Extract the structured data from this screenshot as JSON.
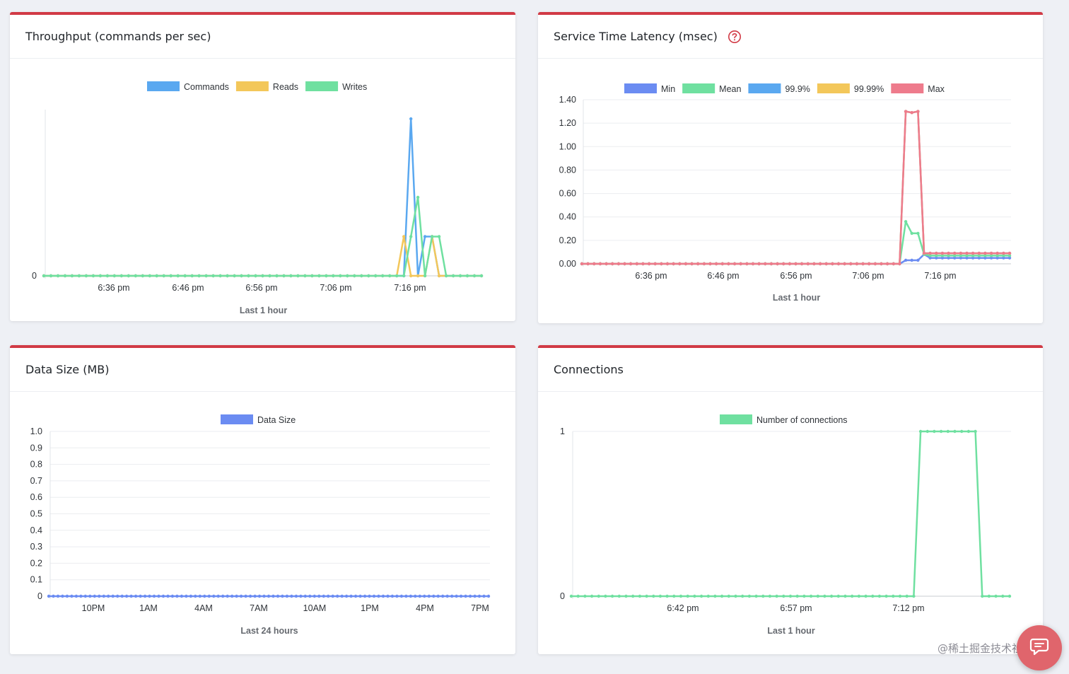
{
  "colors": {
    "commands": "#5aa8f0",
    "reads": "#f3c75a",
    "writes": "#6fe0a0",
    "min": "#6b8cf2",
    "mean": "#6fe0a0",
    "p999": "#5aa8f0",
    "p9999": "#f3c75a",
    "max": "#ee7b8c",
    "datasize": "#6b8cf2",
    "connections": "#6fe0a0",
    "accent": "#d13a45"
  },
  "icons": {
    "help": "help-circle-icon",
    "chat": "chat-bubble-icon"
  },
  "watermark": "@稀土掘金技术社区",
  "charts": {
    "throughput": {
      "title": "Throughput (commands per sec)",
      "chart_data": {
        "type": "line",
        "xlabel": "Last 1 hour",
        "xticks": [
          "6:36 pm",
          "6:46 pm",
          "6:56 pm",
          "7:06 pm",
          "7:16 pm"
        ],
        "yticks": [
          "0"
        ],
        "legend_position": "top",
        "series": [
          {
            "name": "Commands",
            "values": [
              0,
              0,
              0,
              0,
              0,
              0,
              0,
              0,
              0,
              0,
              0,
              0,
              0,
              0,
              0,
              0,
              0,
              0,
              0,
              0,
              0,
              0,
              0,
              0,
              0,
              0,
              0,
              0,
              0,
              0,
              0,
              0,
              0,
              0,
              0,
              0,
              0,
              0,
              0,
              0,
              0,
              0,
              0,
              0,
              0,
              0,
              0,
              0,
              0,
              0,
              0,
              0,
              1,
              0,
              0.25,
              0.25,
              0,
              0,
              0,
              0,
              0,
              0,
              0
            ]
          },
          {
            "name": "Reads",
            "values": [
              0,
              0,
              0,
              0,
              0,
              0,
              0,
              0,
              0,
              0,
              0,
              0,
              0,
              0,
              0,
              0,
              0,
              0,
              0,
              0,
              0,
              0,
              0,
              0,
              0,
              0,
              0,
              0,
              0,
              0,
              0,
              0,
              0,
              0,
              0,
              0,
              0,
              0,
              0,
              0,
              0,
              0,
              0,
              0,
              0,
              0,
              0,
              0,
              0,
              0,
              0,
              0.25,
              0,
              0,
              0,
              0.25,
              0,
              0,
              0,
              0,
              0,
              0,
              0
            ]
          },
          {
            "name": "Writes",
            "values": [
              0,
              0,
              0,
              0,
              0,
              0,
              0,
              0,
              0,
              0,
              0,
              0,
              0,
              0,
              0,
              0,
              0,
              0,
              0,
              0,
              0,
              0,
              0,
              0,
              0,
              0,
              0,
              0,
              0,
              0,
              0,
              0,
              0,
              0,
              0,
              0,
              0,
              0,
              0,
              0,
              0,
              0,
              0,
              0,
              0,
              0,
              0,
              0,
              0,
              0,
              0,
              0,
              0.25,
              0.5,
              0,
              0.25,
              0.25,
              0,
              0,
              0,
              0,
              0,
              0
            ]
          }
        ]
      }
    },
    "latency": {
      "title": "Service Time Latency (msec)",
      "chart_data": {
        "type": "line",
        "xlabel": "Last 1 hour",
        "xticks": [
          "6:36 pm",
          "6:46 pm",
          "6:56 pm",
          "7:06 pm",
          "7:16 pm"
        ],
        "yticks": [
          "0.00",
          "0.20",
          "0.40",
          "0.60",
          "0.80",
          "1.00",
          "1.20",
          "1.40"
        ],
        "ylim": [
          0,
          1.4
        ],
        "legend_position": "top",
        "series": [
          {
            "name": "Min",
            "values": [
              0,
              0,
              0,
              0,
              0,
              0,
              0,
              0,
              0,
              0,
              0,
              0,
              0,
              0,
              0,
              0,
              0,
              0,
              0,
              0,
              0,
              0,
              0,
              0,
              0,
              0,
              0,
              0,
              0,
              0,
              0,
              0,
              0,
              0,
              0,
              0,
              0,
              0,
              0,
              0,
              0,
              0,
              0,
              0,
              0,
              0,
              0,
              0,
              0,
              0,
              0,
              0,
              0,
              0.03,
              0.03,
              0.03,
              0.08,
              0.05,
              0.05,
              0.05,
              0.05,
              0.05,
              0.05,
              0.05,
              0.05,
              0.05,
              0.05,
              0.05,
              0.05,
              0.05,
              0.05
            ]
          },
          {
            "name": "Mean",
            "values": [
              0,
              0,
              0,
              0,
              0,
              0,
              0,
              0,
              0,
              0,
              0,
              0,
              0,
              0,
              0,
              0,
              0,
              0,
              0,
              0,
              0,
              0,
              0,
              0,
              0,
              0,
              0,
              0,
              0,
              0,
              0,
              0,
              0,
              0,
              0,
              0,
              0,
              0,
              0,
              0,
              0,
              0,
              0,
              0,
              0,
              0,
              0,
              0,
              0,
              0,
              0,
              0,
              0,
              0.36,
              0.26,
              0.26,
              0.08,
              0.07,
              0.07,
              0.07,
              0.07,
              0.07,
              0.07,
              0.07,
              0.07,
              0.07,
              0.07,
              0.07,
              0.07,
              0.07,
              0.07
            ]
          },
          {
            "name": "99.9%",
            "values": [
              0,
              0,
              0,
              0,
              0,
              0,
              0,
              0,
              0,
              0,
              0,
              0,
              0,
              0,
              0,
              0,
              0,
              0,
              0,
              0,
              0,
              0,
              0,
              0,
              0,
              0,
              0,
              0,
              0,
              0,
              0,
              0,
              0,
              0,
              0,
              0,
              0,
              0,
              0,
              0,
              0,
              0,
              0,
              0,
              0,
              0,
              0,
              0,
              0,
              0,
              0,
              0,
              0,
              1.3,
              1.29,
              1.3,
              0.09,
              0.09,
              0.09,
              0.09,
              0.09,
              0.09,
              0.09,
              0.09,
              0.09,
              0.09,
              0.09,
              0.09,
              0.09,
              0.09,
              0.09
            ]
          },
          {
            "name": "99.99%",
            "values": [
              0,
              0,
              0,
              0,
              0,
              0,
              0,
              0,
              0,
              0,
              0,
              0,
              0,
              0,
              0,
              0,
              0,
              0,
              0,
              0,
              0,
              0,
              0,
              0,
              0,
              0,
              0,
              0,
              0,
              0,
              0,
              0,
              0,
              0,
              0,
              0,
              0,
              0,
              0,
              0,
              0,
              0,
              0,
              0,
              0,
              0,
              0,
              0,
              0,
              0,
              0,
              0,
              0,
              1.3,
              1.29,
              1.3,
              0.09,
              0.09,
              0.09,
              0.09,
              0.09,
              0.09,
              0.09,
              0.09,
              0.09,
              0.09,
              0.09,
              0.09,
              0.09,
              0.09,
              0.09
            ]
          },
          {
            "name": "Max",
            "values": [
              0,
              0,
              0,
              0,
              0,
              0,
              0,
              0,
              0,
              0,
              0,
              0,
              0,
              0,
              0,
              0,
              0,
              0,
              0,
              0,
              0,
              0,
              0,
              0,
              0,
              0,
              0,
              0,
              0,
              0,
              0,
              0,
              0,
              0,
              0,
              0,
              0,
              0,
              0,
              0,
              0,
              0,
              0,
              0,
              0,
              0,
              0,
              0,
              0,
              0,
              0,
              0,
              0,
              1.3,
              1.29,
              1.3,
              0.09,
              0.09,
              0.09,
              0.09,
              0.09,
              0.09,
              0.09,
              0.09,
              0.09,
              0.09,
              0.09,
              0.09,
              0.09,
              0.09,
              0.09
            ]
          }
        ]
      }
    },
    "datasize": {
      "title": "Data Size (MB)",
      "chart_data": {
        "type": "line",
        "xlabel": "Last 24 hours",
        "xticks": [
          "10PM",
          "1AM",
          "4AM",
          "7AM",
          "10AM",
          "1PM",
          "4PM",
          "7PM"
        ],
        "yticks": [
          "0",
          "0.1",
          "0.2",
          "0.3",
          "0.4",
          "0.5",
          "0.6",
          "0.7",
          "0.8",
          "0.9",
          "1.0"
        ],
        "ylim": [
          0,
          1
        ],
        "legend_position": "top",
        "series": [
          {
            "name": "Data Size",
            "values": [
              0,
              0,
              0,
              0,
              0,
              0,
              0,
              0,
              0,
              0,
              0,
              0,
              0,
              0,
              0,
              0,
              0,
              0,
              0,
              0,
              0,
              0,
              0,
              0,
              0,
              0,
              0,
              0,
              0,
              0,
              0,
              0,
              0,
              0,
              0,
              0,
              0,
              0,
              0,
              0,
              0,
              0,
              0,
              0,
              0,
              0,
              0,
              0,
              0,
              0,
              0,
              0,
              0,
              0,
              0,
              0,
              0,
              0,
              0,
              0,
              0,
              0,
              0,
              0,
              0,
              0,
              0,
              0,
              0,
              0,
              0,
              0,
              0,
              0,
              0,
              0,
              0,
              0,
              0,
              0,
              0,
              0,
              0,
              0,
              0,
              0,
              0,
              0,
              0,
              0,
              0,
              0,
              0,
              0,
              0,
              0,
              0
            ]
          }
        ]
      }
    },
    "connections": {
      "title": "Connections",
      "chart_data": {
        "type": "line",
        "xlabel": "Last 1 hour",
        "xticks": [
          "6:42 pm",
          "6:57 pm",
          "7:12 pm"
        ],
        "yticks": [
          "0",
          "1"
        ],
        "ylim": [
          0,
          1
        ],
        "legend_position": "top",
        "series": [
          {
            "name": "Number of connections",
            "values": [
              0,
              0,
              0,
              0,
              0,
              0,
              0,
              0,
              0,
              0,
              0,
              0,
              0,
              0,
              0,
              0,
              0,
              0,
              0,
              0,
              0,
              0,
              0,
              0,
              0,
              0,
              0,
              0,
              0,
              0,
              0,
              0,
              0,
              0,
              0,
              0,
              0,
              0,
              0,
              0,
              0,
              0,
              0,
              0,
              0,
              0,
              0,
              0,
              0,
              0,
              0,
              1,
              1,
              1,
              1,
              1,
              1,
              1,
              1,
              1,
              0,
              0,
              0,
              0,
              0
            ]
          }
        ]
      }
    }
  }
}
